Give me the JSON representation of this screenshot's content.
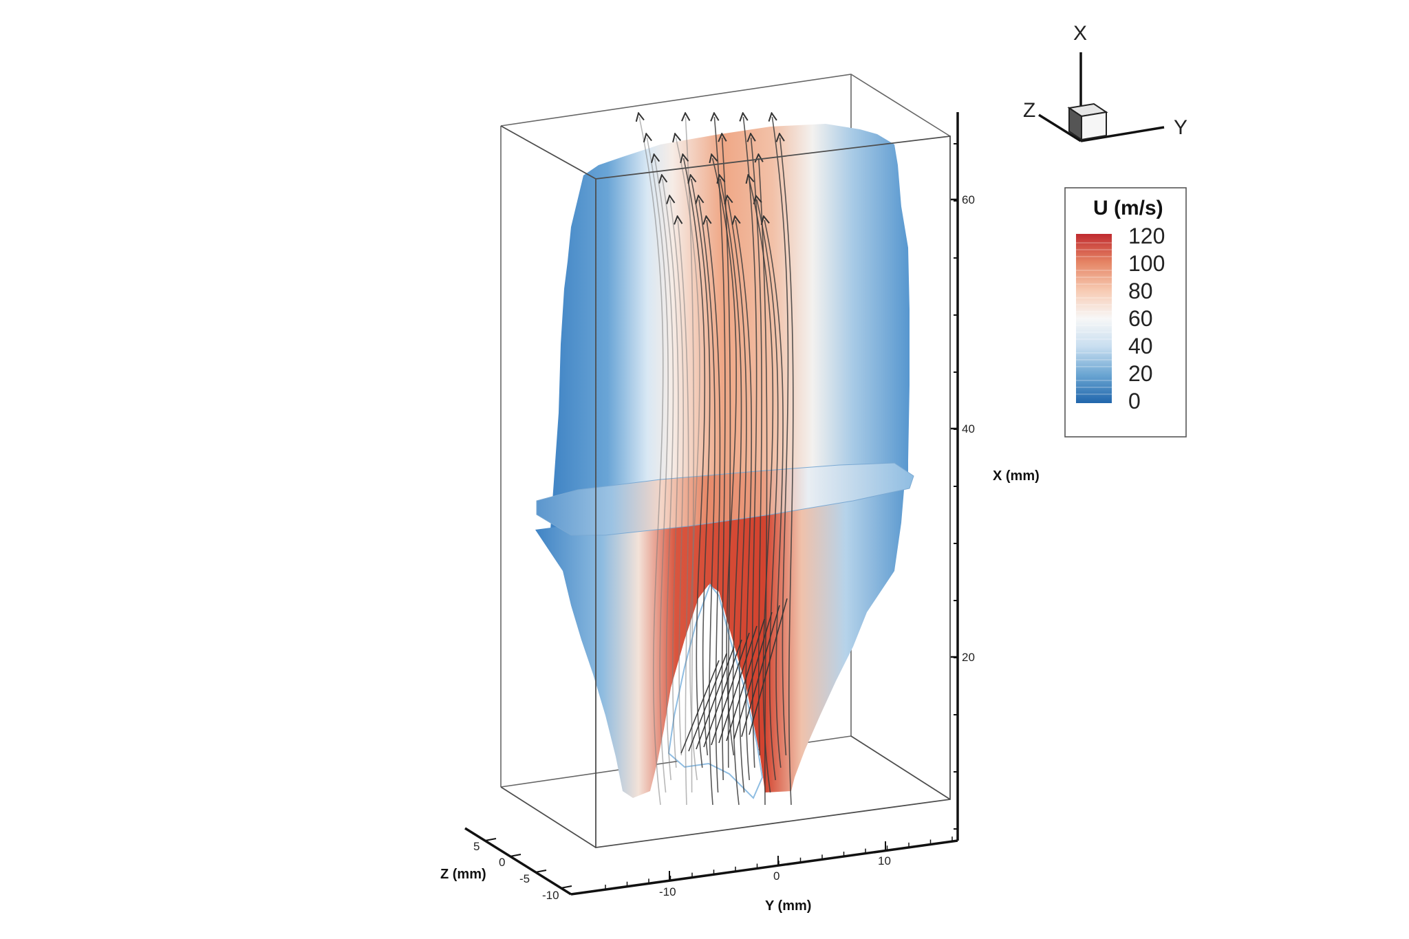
{
  "chart_data": {
    "type": "heatmap",
    "title": "",
    "xlabel": "Y (mm)",
    "ylabel": "X (mm)",
    "zlabel": "Z (mm)",
    "x_ticks": [
      "-10",
      "0",
      "10"
    ],
    "y_ticks": [
      "20",
      "40",
      "60"
    ],
    "z_ticks": [
      "5",
      "0",
      "-5",
      "-10"
    ],
    "orientation_triad": {
      "axes": [
        "X",
        "Y",
        "Z"
      ]
    },
    "colorbar": {
      "title": "U (m/s)",
      "ticks": [
        "120",
        "100",
        "80",
        "60",
        "40",
        "20",
        "0"
      ],
      "range": [
        0,
        120
      ],
      "colors": [
        "#2166ac",
        "#6aa5d2",
        "#c8def0",
        "#f7f7f7",
        "#f7cab2",
        "#e58464",
        "#c02b2f"
      ]
    },
    "streamlines": true,
    "grid": false
  }
}
